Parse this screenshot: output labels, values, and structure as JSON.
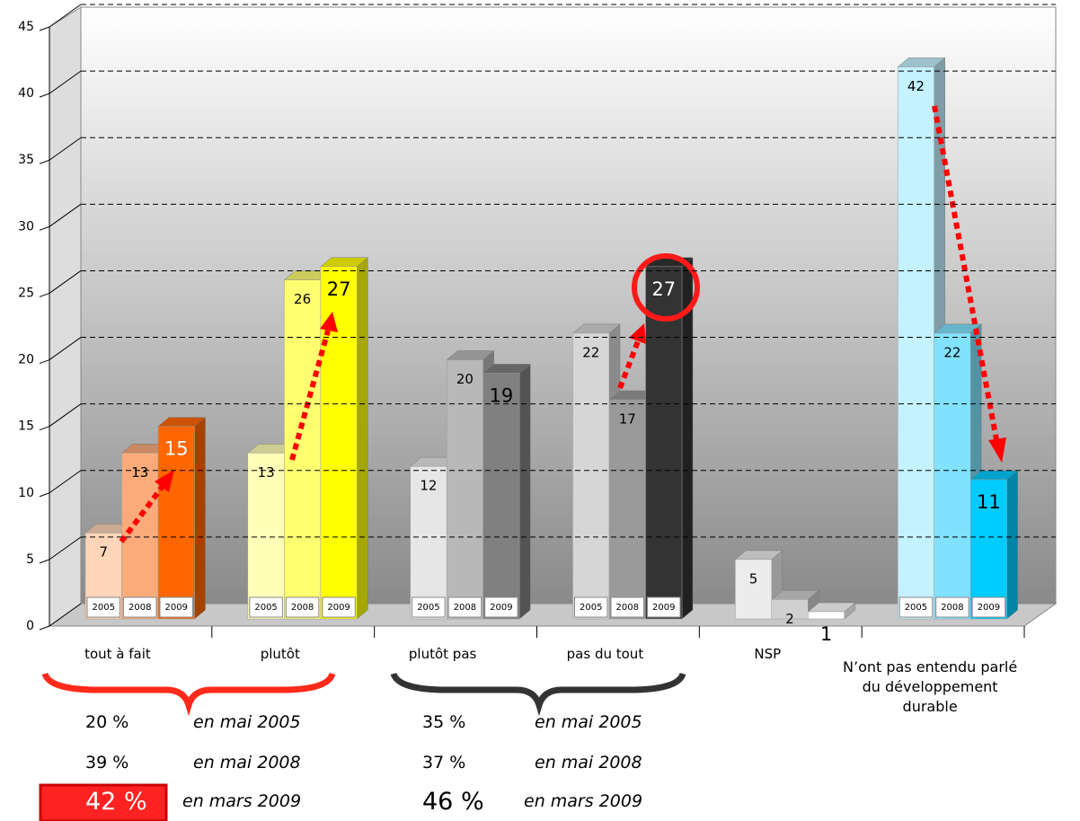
{
  "chart_data": {
    "type": "bar3d",
    "categories": [
      "tout à fait",
      "plutôt",
      "plutôt pas",
      "pas du tout",
      "NSP",
      "N’ont pas entendu parlé du développement durable"
    ],
    "series": [
      {
        "name": "2005",
        "values": [
          7,
          13,
          12,
          22,
          5,
          42
        ],
        "colors": [
          "#fdd5b8",
          "#ffffb8",
          "#e6e6e6",
          "#d6d6d6",
          "#ececec",
          "#c4f2ff"
        ]
      },
      {
        "name": "2008",
        "values": [
          13,
          26,
          20,
          17,
          2,
          22
        ],
        "colors": [
          "#fbab7a",
          "#ffff70",
          "#b8b8b8",
          "#9a9a9a",
          "#d0d0d0",
          "#80e2ff"
        ]
      },
      {
        "name": "2009",
        "values": [
          15,
          27,
          19,
          27,
          1,
          11
        ],
        "colors": [
          "#ff6600",
          "#ffff00",
          "#808080",
          "#333333",
          "#ffffff",
          "#00ccff"
        ]
      }
    ],
    "ylim": [
      0,
      45
    ],
    "yticks": [
      0,
      5,
      10,
      15,
      20,
      25,
      30,
      35,
      40,
      45
    ],
    "grid": true,
    "summaries": [
      {
        "rows": [
          [
            "20 %",
            "en mai 2005"
          ],
          [
            "39 %",
            "en mai 2008"
          ],
          [
            "42 %",
            "en mars 2009"
          ]
        ]
      },
      {
        "rows": [
          [
            "35 %",
            "en mai 2005"
          ],
          [
            "37 %",
            "en mai 2008"
          ],
          [
            "46 %",
            "en mars 2009"
          ]
        ]
      }
    ]
  }
}
